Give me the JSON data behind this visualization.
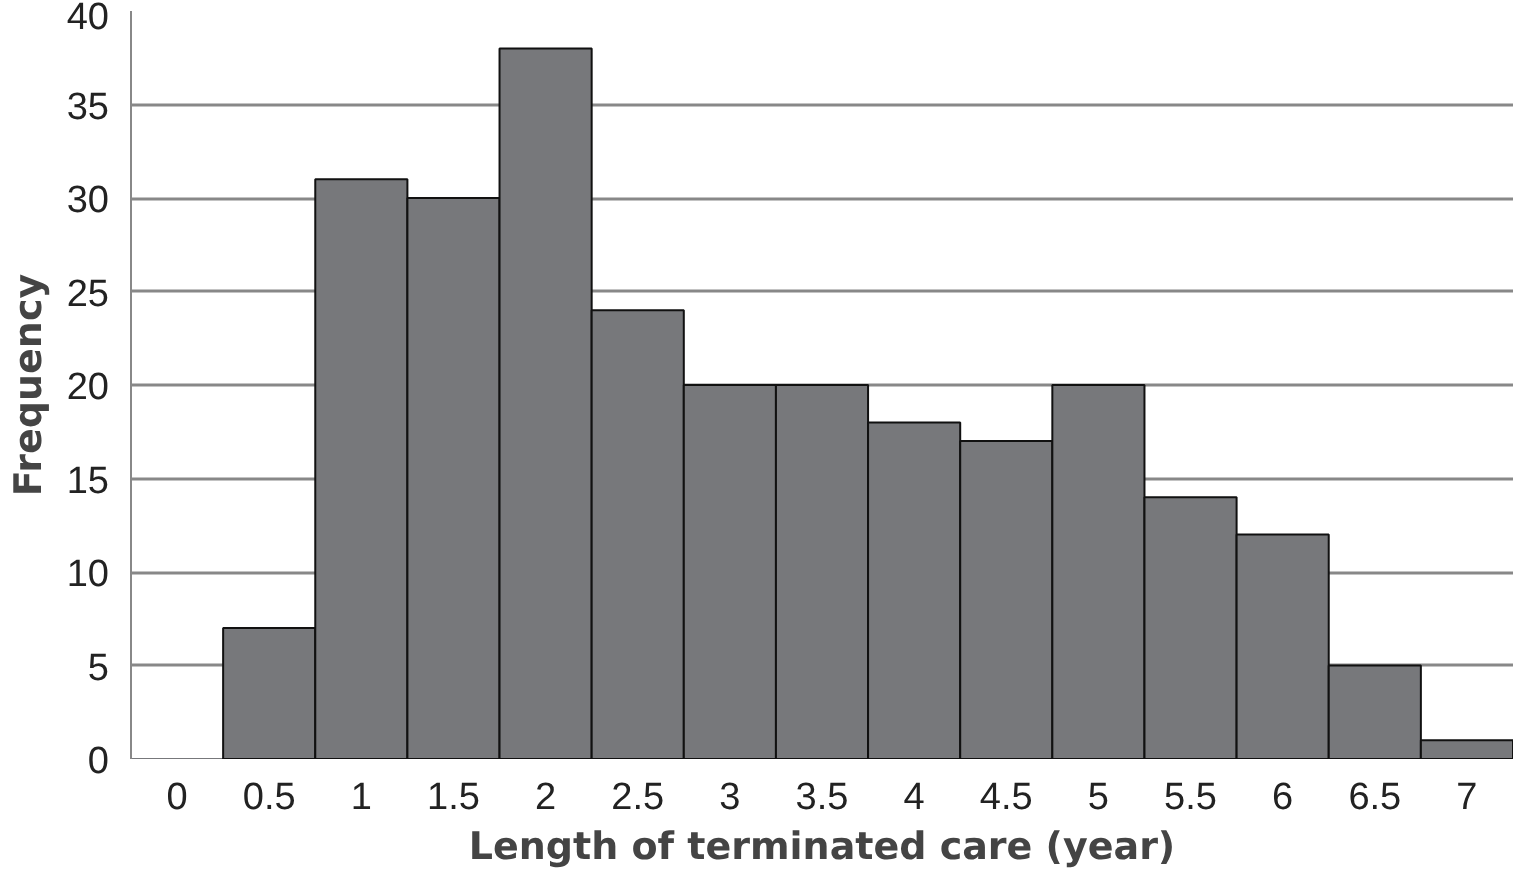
{
  "chart_data": {
    "type": "bar",
    "xlabel": "Length of terminated care (year)",
    "ylabel": "Frequency",
    "categories": [
      "0",
      "0.5",
      "1",
      "1.5",
      "2",
      "2.5",
      "3",
      "3.5",
      "4",
      "4.5",
      "5",
      "5.5",
      "6",
      "6.5",
      "7"
    ],
    "values": [
      0,
      7,
      31,
      30,
      38,
      24,
      20,
      20,
      18,
      17,
      20,
      14,
      12,
      5,
      1
    ],
    "color": "#77787b",
    "ylim": [
      0,
      40
    ],
    "yticks": [
      0,
      5,
      10,
      15,
      20,
      25,
      30,
      35,
      40
    ],
    "grid": "y"
  }
}
